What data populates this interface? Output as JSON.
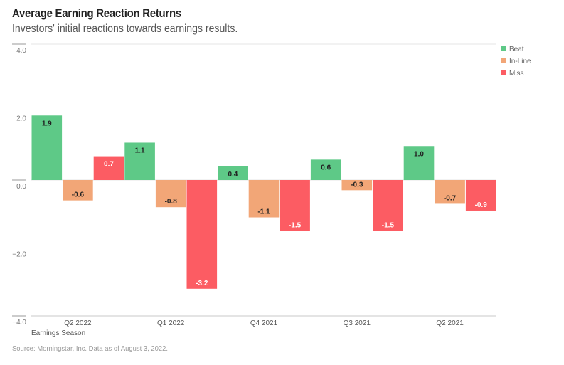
{
  "header": {
    "title": "Average Earning Reaction Returns",
    "subtitle": "Investors' initial reactions towards earnings results."
  },
  "footer": {
    "source": "Source: Morningstar, Inc. Data as of August 3, 2022."
  },
  "chart_data": {
    "type": "bar",
    "title": "Average Earning Reaction Returns",
    "subtitle": "Investors' initial reactions towards earnings results.",
    "xlabel": "Earnings Season",
    "ylabel": "",
    "ylim": [
      -4.0,
      4.0
    ],
    "yticks": [
      4.0,
      2.0,
      0.0,
      -2.0,
      -4.0
    ],
    "ytick_labels": [
      "4.0",
      "2.0",
      "0.0",
      "−2.0",
      "−4.0"
    ],
    "grid": true,
    "legend_position": "top-right",
    "categories": [
      "Q2 2022",
      "Q1 2022",
      "Q4 2021",
      "Q3 2021",
      "Q2 2021"
    ],
    "series": [
      {
        "name": "Beat",
        "color": "#5ec987",
        "label_color": "#222222",
        "values": [
          1.9,
          1.1,
          0.4,
          0.6,
          1.0
        ]
      },
      {
        "name": "In-Line",
        "color": "#f2a677",
        "label_color": "#222222",
        "values": [
          -0.6,
          -0.8,
          -1.1,
          -0.3,
          -0.7
        ]
      },
      {
        "name": "Miss",
        "color": "#fc5c63",
        "label_color": "#ffffff",
        "values": [
          0.7,
          -3.2,
          -1.5,
          -1.5,
          -0.9
        ]
      }
    ]
  }
}
